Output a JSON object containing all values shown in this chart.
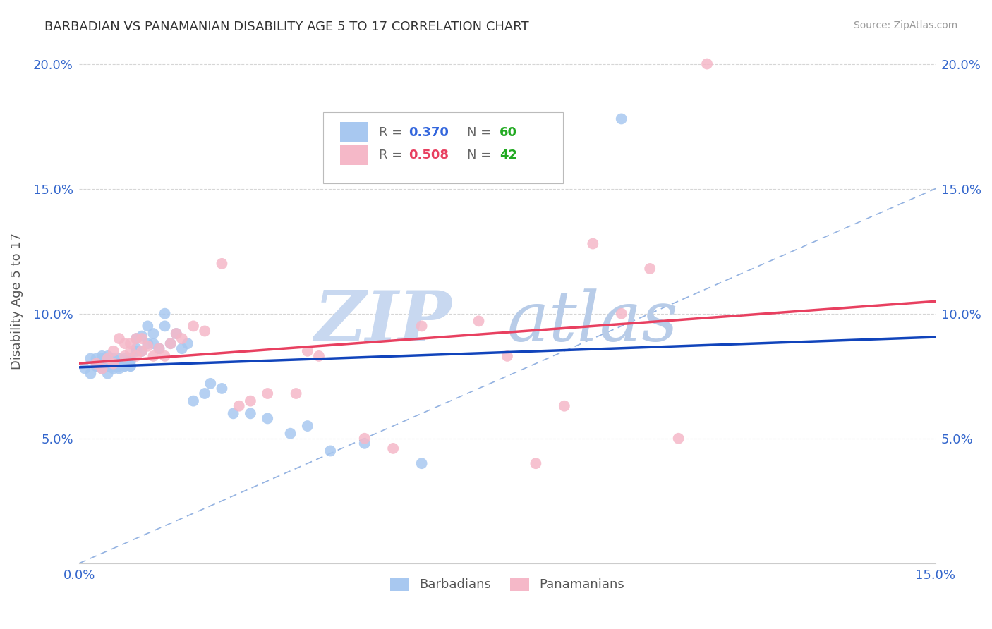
{
  "title": "BARBADIAN VS PANAMANIAN DISABILITY AGE 5 TO 17 CORRELATION CHART",
  "source": "Source: ZipAtlas.com",
  "ylabel": "Disability Age 5 to 17",
  "xlim": [
    0.0,
    0.15
  ],
  "ylim": [
    0.0,
    0.21
  ],
  "xticks": [
    0.0,
    0.15
  ],
  "xticklabels": [
    "0.0%",
    "15.0%"
  ],
  "yticks": [
    0.0,
    0.05,
    0.1,
    0.15,
    0.2
  ],
  "yticklabels": [
    "",
    "5.0%",
    "10.0%",
    "15.0%",
    "20.0%"
  ],
  "blue_R": 0.37,
  "blue_N": 60,
  "pink_R": 0.508,
  "pink_N": 42,
  "blue_color": "#A8C8F0",
  "pink_color": "#F5B8C8",
  "blue_line_color": "#1144BB",
  "pink_line_color": "#E84060",
  "diagonal_color": "#88AADE",
  "legend_R_color": "#3366DD",
  "legend_N_color": "#22AA22",
  "watermark_zip_color": "#C8D8F0",
  "watermark_atlas_color": "#B8CCE8",
  "background_color": "#FFFFFF",
  "grid_color": "#CCCCCC",
  "blue_scatter_x": [
    0.001,
    0.002,
    0.002,
    0.003,
    0.003,
    0.003,
    0.004,
    0.004,
    0.004,
    0.004,
    0.005,
    0.005,
    0.005,
    0.005,
    0.005,
    0.005,
    0.006,
    0.006,
    0.006,
    0.007,
    0.007,
    0.007,
    0.007,
    0.008,
    0.008,
    0.008,
    0.008,
    0.009,
    0.009,
    0.009,
    0.009,
    0.01,
    0.01,
    0.01,
    0.011,
    0.011,
    0.012,
    0.012,
    0.013,
    0.013,
    0.014,
    0.015,
    0.015,
    0.016,
    0.017,
    0.018,
    0.019,
    0.02,
    0.022,
    0.023,
    0.025,
    0.027,
    0.03,
    0.033,
    0.037,
    0.04,
    0.044,
    0.05,
    0.06,
    0.095
  ],
  "blue_scatter_y": [
    0.078,
    0.082,
    0.076,
    0.079,
    0.082,
    0.079,
    0.082,
    0.079,
    0.083,
    0.078,
    0.082,
    0.079,
    0.076,
    0.08,
    0.083,
    0.079,
    0.079,
    0.082,
    0.078,
    0.078,
    0.079,
    0.082,
    0.079,
    0.081,
    0.079,
    0.082,
    0.079,
    0.081,
    0.079,
    0.082,
    0.079,
    0.086,
    0.09,
    0.085,
    0.091,
    0.085,
    0.088,
    0.095,
    0.088,
    0.092,
    0.086,
    0.095,
    0.1,
    0.088,
    0.092,
    0.086,
    0.088,
    0.065,
    0.068,
    0.072,
    0.07,
    0.06,
    0.06,
    0.058,
    0.052,
    0.055,
    0.045,
    0.048,
    0.04,
    0.178
  ],
  "pink_scatter_x": [
    0.003,
    0.004,
    0.005,
    0.006,
    0.006,
    0.007,
    0.008,
    0.008,
    0.009,
    0.009,
    0.01,
    0.01,
    0.011,
    0.011,
    0.012,
    0.013,
    0.014,
    0.015,
    0.016,
    0.017,
    0.018,
    0.02,
    0.022,
    0.025,
    0.028,
    0.03,
    0.033,
    0.038,
    0.04,
    0.042,
    0.05,
    0.055,
    0.06,
    0.07,
    0.075,
    0.08,
    0.085,
    0.09,
    0.095,
    0.1,
    0.105,
    0.11
  ],
  "pink_scatter_y": [
    0.08,
    0.078,
    0.082,
    0.08,
    0.085,
    0.09,
    0.083,
    0.088,
    0.085,
    0.088,
    0.083,
    0.09,
    0.09,
    0.085,
    0.087,
    0.083,
    0.086,
    0.083,
    0.088,
    0.092,
    0.09,
    0.095,
    0.093,
    0.12,
    0.063,
    0.065,
    0.068,
    0.068,
    0.085,
    0.083,
    0.05,
    0.046,
    0.095,
    0.097,
    0.083,
    0.04,
    0.063,
    0.128,
    0.1,
    0.118,
    0.05,
    0.2
  ]
}
